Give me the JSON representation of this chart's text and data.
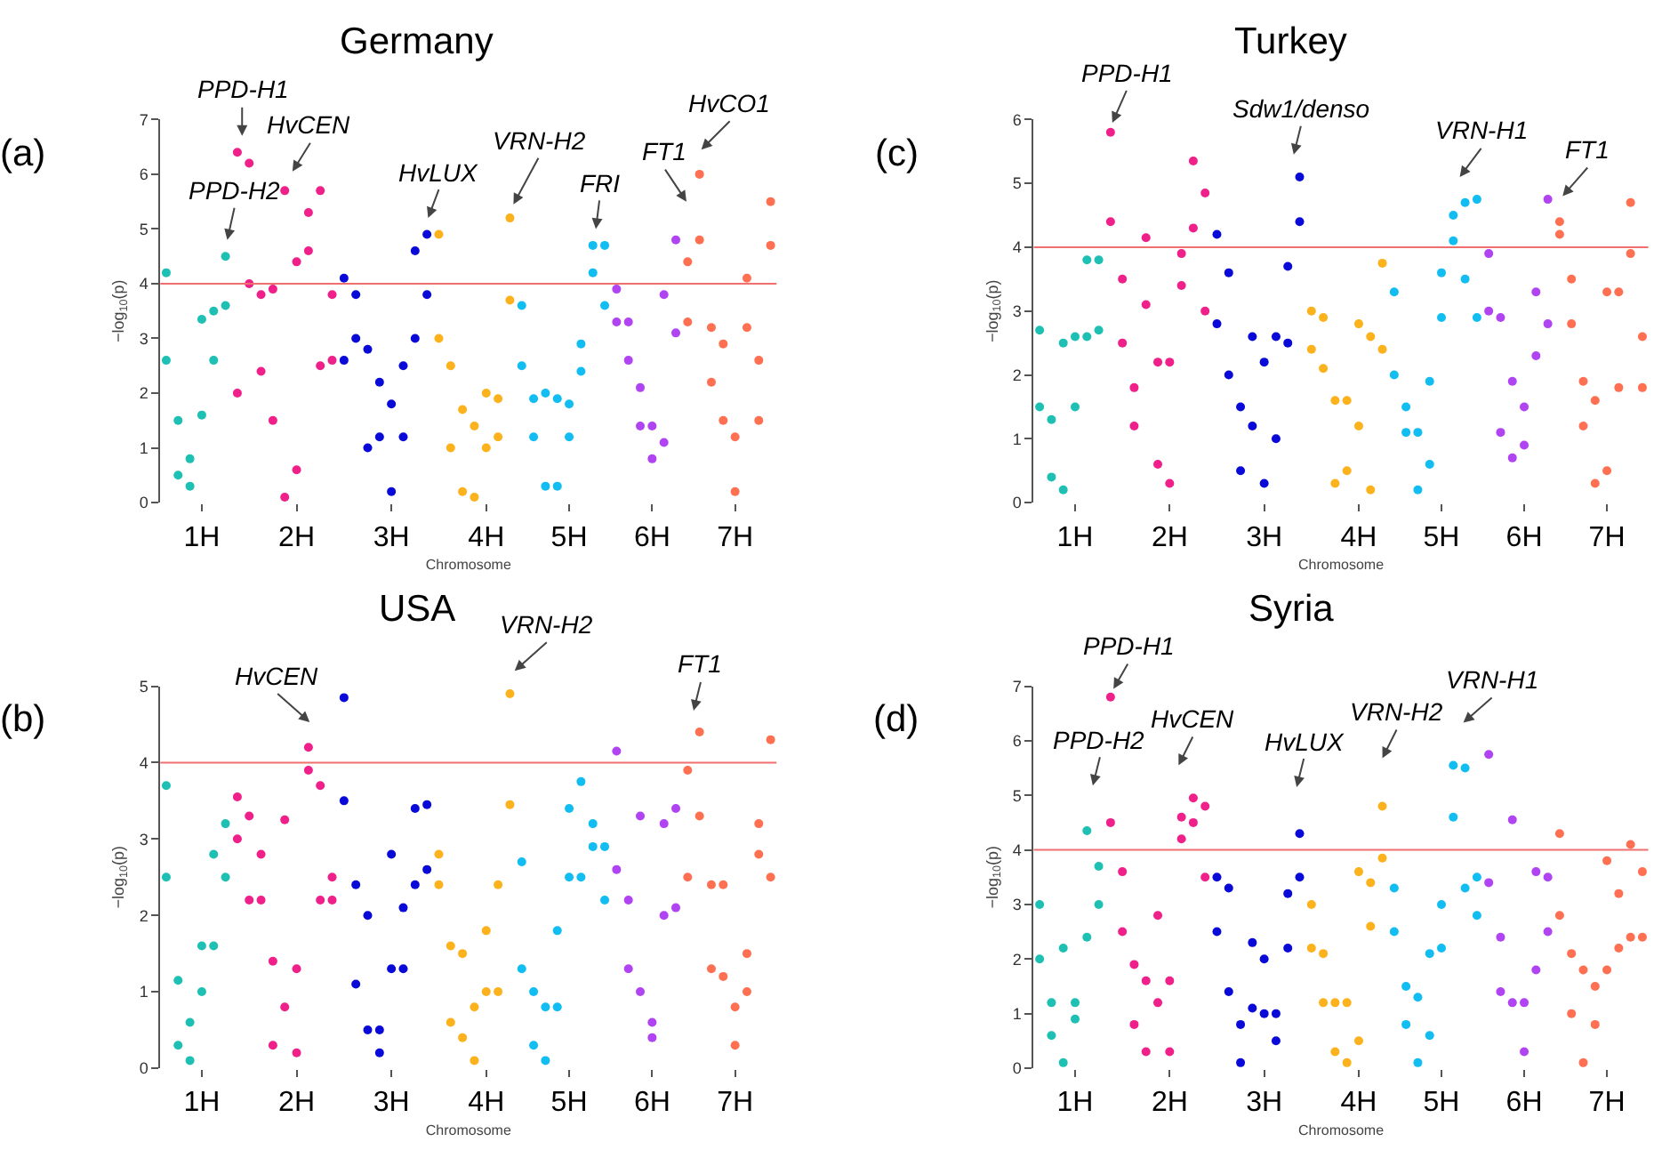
{
  "chart_data": [
    {
      "type": "scatter",
      "title": "Germany",
      "xlabel": "Chromosome",
      "ylabel": "−log$_{10}$(p)",
      "marker": "circle",
      "categories": [
        null,
        null,
        null,
        "1H",
        null,
        null,
        null,
        null,
        null,
        null,
        null,
        "2H",
        null,
        null,
        null,
        null,
        null,
        null,
        null,
        "3H",
        null,
        null,
        null,
        null,
        null,
        null,
        null,
        "4H",
        null,
        null,
        null,
        null,
        null,
        null,
        "5H",
        null,
        null,
        null,
        null,
        null,
        null,
        "6H",
        null,
        null,
        null,
        null,
        null,
        null,
        "7H",
        null,
        null,
        null
      ],
      "ylim": [
        0,
        7
      ],
      "yticks": [
        0,
        1,
        2,
        3,
        4,
        5,
        6,
        7
      ],
      "ref_lines": [
        {
          "axis": "y",
          "value": 4,
          "color": "#f07070"
        }
      ],
      "annotations": [
        "(a)",
        "PPD-H2",
        "PPD-H1",
        "HvCEN",
        "HvLUX",
        "VRN-H2",
        "FRI",
        "FT1",
        "HvCO1"
      ],
      "series": [
        {
          "values": [
            4.2,
            1.5,
            0.8,
            3.35,
            3.5,
            4.5,
            6.4,
            6.2,
            3.8,
            3.9,
            5.7,
            4.4,
            5.3,
            5.7,
            3.8,
            4.1,
            3.8,
            2.8,
            2.2,
            1.8,
            2.5,
            4.6,
            4.9,
            4.9,
            2.5,
            1.7,
            1.4,
            2.0,
            1.9,
            5.2,
            3.6,
            1.9,
            2.0,
            1.9,
            1.8,
            2.9,
            4.7,
            4.7,
            3.9,
            3.3,
            2.1,
            1.4,
            3.8,
            4.8,
            4.4,
            6.0,
            3.2,
            2.9,
            1.2,
            4.1,
            2.6,
            5.5
          ],
          "colors": [
            "#1fc0b4",
            "#1fc0b4",
            "#1fc0b4",
            "#1fc0b4",
            "#1fc0b4",
            "#1fc0b4",
            "#f0208a",
            "#f0208a",
            "#f0208a",
            "#f0208a",
            "#f0208a",
            "#f0208a",
            "#f0208a",
            "#f0208a",
            "#f0208a",
            "#0a0ad8",
            "#0a0ad8",
            "#0a0ad8",
            "#0a0ad8",
            "#0a0ad8",
            "#0a0ad8",
            "#0a0ad8",
            "#0a0ad8",
            "#fbb21c",
            "#fbb21c",
            "#fbb21c",
            "#fbb21c",
            "#fbb21c",
            "#fbb21c",
            "#fbb21c",
            "#12bdf2",
            "#12bdf2",
            "#12bdf2",
            "#12bdf2",
            "#12bdf2",
            "#12bdf2",
            "#12bdf2",
            "#12bdf2",
            "#b043f2",
            "#b043f2",
            "#b043f2",
            "#b043f2",
            "#b043f2",
            "#b043f2",
            "#ff7052",
            "#ff7052",
            "#ff7052",
            "#ff7052",
            "#ff7052",
            "#ff7052",
            "#ff7052",
            "#ff7052"
          ]
        },
        {
          "values": [
            2.6,
            0.5,
            0.3,
            1.6,
            2.6,
            3.6,
            2.0,
            4.0,
            2.4,
            1.5,
            0.1,
            0.6,
            4.6,
            2.5,
            2.6,
            2.6,
            3.0,
            1.0,
            1.2,
            0.2,
            1.2,
            3.0,
            3.8,
            3.0,
            1.0,
            0.2,
            0.1,
            1.0,
            1.2,
            3.7,
            2.5,
            1.2,
            0.3,
            0.3,
            1.2,
            2.4,
            4.2,
            3.6,
            3.3,
            2.6,
            1.4,
            0.8,
            1.1,
            3.1,
            3.3,
            4.8,
            2.2,
            1.5,
            0.2,
            3.2,
            1.5,
            4.7
          ],
          "colors": [
            "#1fc0b4",
            "#1fc0b4",
            "#1fc0b4",
            "#1fc0b4",
            "#1fc0b4",
            "#1fc0b4",
            "#f0208a",
            "#f0208a",
            "#f0208a",
            "#f0208a",
            "#f0208a",
            "#f0208a",
            "#f0208a",
            "#f0208a",
            "#f0208a",
            "#0a0ad8",
            "#0a0ad8",
            "#0a0ad8",
            "#0a0ad8",
            "#0a0ad8",
            "#0a0ad8",
            "#0a0ad8",
            "#0a0ad8",
            "#fbb21c",
            "#fbb21c",
            "#fbb21c",
            "#fbb21c",
            "#fbb21c",
            "#fbb21c",
            "#fbb21c",
            "#12bdf2",
            "#12bdf2",
            "#12bdf2",
            "#12bdf2",
            "#12bdf2",
            "#12bdf2",
            "#12bdf2",
            "#12bdf2",
            "#b043f2",
            "#b043f2",
            "#b043f2",
            "#b043f2",
            "#b043f2",
            "#b043f2",
            "#ff7052",
            "#ff7052",
            "#ff7052",
            "#ff7052",
            "#ff7052",
            "#ff7052",
            "#ff7052",
            "#ff7052"
          ]
        }
      ]
    },
    {
      "type": "scatter",
      "title": "Turkey",
      "xlabel": "Chromosome",
      "ylabel": "−log$_{10}$(p)",
      "marker": "circle",
      "categories": [
        null,
        null,
        null,
        "1H",
        null,
        null,
        null,
        null,
        null,
        null,
        null,
        "2H",
        null,
        null,
        null,
        null,
        null,
        null,
        null,
        "3H",
        null,
        null,
        null,
        null,
        null,
        null,
        null,
        "4H",
        null,
        null,
        null,
        null,
        null,
        null,
        "5H",
        null,
        null,
        null,
        null,
        null,
        null,
        "6H",
        null,
        null,
        null,
        null,
        null,
        null,
        "7H",
        null,
        null,
        null
      ],
      "ylim": [
        0,
        6
      ],
      "yticks": [
        0,
        1,
        2,
        3,
        4,
        5,
        6
      ],
      "ref_lines": [
        {
          "axis": "y",
          "value": 4,
          "color": "#f07070"
        }
      ],
      "annotations": [
        "(c)",
        "PPD-H1",
        "Sdw1/denso",
        "VRN-H1",
        "FT1"
      ],
      "series": [
        {
          "values": [
            2.7,
            1.3,
            2.5,
            2.6,
            3.8,
            3.8,
            5.8,
            3.5,
            1.8,
            4.15,
            2.2,
            2.2,
            3.9,
            5.35,
            4.85,
            4.2,
            3.6,
            1.5,
            2.6,
            2.2,
            2.6,
            3.7,
            5.1,
            3.0,
            2.9,
            1.6,
            1.6,
            2.8,
            2.6,
            3.75,
            3.3,
            1.5,
            1.1,
            1.9,
            3.6,
            4.5,
            4.7,
            4.75,
            3.9,
            2.9,
            1.9,
            1.5,
            3.3,
            4.75,
            4.4,
            3.5,
            1.9,
            1.6,
            3.3,
            3.3,
            4.7,
            2.6
          ],
          "colors": [
            "#1fc0b4",
            "#1fc0b4",
            "#1fc0b4",
            "#1fc0b4",
            "#1fc0b4",
            "#1fc0b4",
            "#f0208a",
            "#f0208a",
            "#f0208a",
            "#f0208a",
            "#f0208a",
            "#f0208a",
            "#f0208a",
            "#f0208a",
            "#f0208a",
            "#0a0ad8",
            "#0a0ad8",
            "#0a0ad8",
            "#0a0ad8",
            "#0a0ad8",
            "#0a0ad8",
            "#0a0ad8",
            "#0a0ad8",
            "#fbb21c",
            "#fbb21c",
            "#fbb21c",
            "#fbb21c",
            "#fbb21c",
            "#fbb21c",
            "#fbb21c",
            "#12bdf2",
            "#12bdf2",
            "#12bdf2",
            "#12bdf2",
            "#12bdf2",
            "#12bdf2",
            "#12bdf2",
            "#12bdf2",
            "#b043f2",
            "#b043f2",
            "#b043f2",
            "#b043f2",
            "#b043f2",
            "#b043f2",
            "#ff7052",
            "#ff7052",
            "#ff7052",
            "#ff7052",
            "#ff7052",
            "#ff7052",
            "#ff7052",
            "#ff7052"
          ]
        },
        {
          "values": [
            1.5,
            0.4,
            0.2,
            1.5,
            2.6,
            2.7,
            4.4,
            2.5,
            1.2,
            3.1,
            0.6,
            0.3,
            3.4,
            4.3,
            3.0,
            2.8,
            2.0,
            0.5,
            1.2,
            0.3,
            1.0,
            2.5,
            4.4,
            2.4,
            2.1,
            0.3,
            0.5,
            1.2,
            0.2,
            2.4,
            2.0,
            1.1,
            0.2,
            0.6,
            2.9,
            4.1,
            3.5,
            2.9,
            3.0,
            1.1,
            0.7,
            0.9,
            2.3,
            2.8,
            4.2,
            2.8,
            1.2,
            0.3,
            0.5,
            1.8,
            3.9,
            1.8
          ],
          "colors": [
            "#1fc0b4",
            "#1fc0b4",
            "#1fc0b4",
            "#1fc0b4",
            "#1fc0b4",
            "#1fc0b4",
            "#f0208a",
            "#f0208a",
            "#f0208a",
            "#f0208a",
            "#f0208a",
            "#f0208a",
            "#f0208a",
            "#f0208a",
            "#f0208a",
            "#0a0ad8",
            "#0a0ad8",
            "#0a0ad8",
            "#0a0ad8",
            "#0a0ad8",
            "#0a0ad8",
            "#0a0ad8",
            "#0a0ad8",
            "#fbb21c",
            "#fbb21c",
            "#fbb21c",
            "#fbb21c",
            "#fbb21c",
            "#fbb21c",
            "#fbb21c",
            "#12bdf2",
            "#12bdf2",
            "#12bdf2",
            "#12bdf2",
            "#12bdf2",
            "#12bdf2",
            "#12bdf2",
            "#12bdf2",
            "#b043f2",
            "#b043f2",
            "#b043f2",
            "#b043f2",
            "#b043f2",
            "#b043f2",
            "#ff7052",
            "#ff7052",
            "#ff7052",
            "#ff7052",
            "#ff7052",
            "#ff7052",
            "#ff7052",
            "#ff7052"
          ]
        }
      ]
    },
    {
      "type": "scatter",
      "title": "USA",
      "xlabel": "Chromosome",
      "ylabel": "−log$_{10}$(p)",
      "marker": "circle",
      "categories": [
        null,
        null,
        null,
        "1H",
        null,
        null,
        null,
        null,
        null,
        null,
        null,
        "2H",
        null,
        null,
        null,
        null,
        null,
        null,
        null,
        "3H",
        null,
        null,
        null,
        null,
        null,
        null,
        null,
        "4H",
        null,
        null,
        null,
        null,
        null,
        null,
        "5H",
        null,
        null,
        null,
        null,
        null,
        null,
        "6H",
        null,
        null,
        null,
        null,
        null,
        null,
        "7H",
        null,
        null,
        null
      ],
      "ylim": [
        0,
        5
      ],
      "yticks": [
        0,
        1,
        2,
        3,
        4,
        5
      ],
      "ref_lines": [
        {
          "axis": "y",
          "value": 4,
          "color": "#f07070"
        }
      ],
      "annotations": [
        "(b)",
        "HvCEN",
        "VRN-H2",
        "FT1"
      ],
      "series": [
        {
          "values": [
            3.7,
            1.15,
            0.6,
            1.6,
            2.8,
            3.2,
            3.55,
            3.3,
            2.8,
            1.4,
            3.25,
            1.3,
            4.2,
            3.7,
            2.5,
            4.85,
            2.4,
            2.0,
            0.5,
            2.8,
            2.1,
            3.4,
            3.45,
            2.8,
            1.6,
            1.5,
            0.8,
            1.8,
            2.4,
            4.9,
            2.7,
            1.0,
            0.8,
            1.8,
            3.4,
            3.75,
            3.2,
            2.9,
            4.15,
            2.2,
            3.3,
            0.6,
            3.2,
            3.4,
            3.9,
            4.4,
            2.4,
            2.4,
            0.8,
            1.5,
            3.2,
            4.3
          ],
          "colors": [
            "#1fc0b4",
            "#1fc0b4",
            "#1fc0b4",
            "#1fc0b4",
            "#1fc0b4",
            "#1fc0b4",
            "#f0208a",
            "#f0208a",
            "#f0208a",
            "#f0208a",
            "#f0208a",
            "#f0208a",
            "#f0208a",
            "#f0208a",
            "#f0208a",
            "#0a0ad8",
            "#0a0ad8",
            "#0a0ad8",
            "#0a0ad8",
            "#0a0ad8",
            "#0a0ad8",
            "#0a0ad8",
            "#0a0ad8",
            "#fbb21c",
            "#fbb21c",
            "#fbb21c",
            "#fbb21c",
            "#fbb21c",
            "#fbb21c",
            "#fbb21c",
            "#12bdf2",
            "#12bdf2",
            "#12bdf2",
            "#12bdf2",
            "#12bdf2",
            "#12bdf2",
            "#12bdf2",
            "#12bdf2",
            "#b043f2",
            "#b043f2",
            "#b043f2",
            "#b043f2",
            "#b043f2",
            "#b043f2",
            "#ff7052",
            "#ff7052",
            "#ff7052",
            "#ff7052",
            "#ff7052",
            "#ff7052",
            "#ff7052",
            "#ff7052"
          ]
        },
        {
          "values": [
            2.5,
            0.3,
            0.1,
            1.0,
            1.6,
            2.5,
            3.0,
            2.2,
            2.2,
            0.3,
            0.8,
            0.2,
            3.9,
            2.2,
            2.2,
            3.5,
            1.1,
            0.5,
            0.2,
            1.3,
            1.3,
            2.4,
            2.6,
            2.4,
            0.6,
            0.4,
            0.1,
            1.0,
            1.0,
            3.45,
            1.3,
            0.3,
            0.1,
            0.8,
            2.5,
            2.5,
            2.9,
            2.2,
            2.6,
            1.3,
            1.0,
            0.4,
            2.0,
            2.1,
            2.5,
            3.3,
            1.3,
            1.2,
            0.3,
            1.0,
            2.8,
            2.5
          ],
          "colors": [
            "#1fc0b4",
            "#1fc0b4",
            "#1fc0b4",
            "#1fc0b4",
            "#1fc0b4",
            "#1fc0b4",
            "#f0208a",
            "#f0208a",
            "#f0208a",
            "#f0208a",
            "#f0208a",
            "#f0208a",
            "#f0208a",
            "#f0208a",
            "#f0208a",
            "#0a0ad8",
            "#0a0ad8",
            "#0a0ad8",
            "#0a0ad8",
            "#0a0ad8",
            "#0a0ad8",
            "#0a0ad8",
            "#0a0ad8",
            "#fbb21c",
            "#fbb21c",
            "#fbb21c",
            "#fbb21c",
            "#fbb21c",
            "#fbb21c",
            "#fbb21c",
            "#12bdf2",
            "#12bdf2",
            "#12bdf2",
            "#12bdf2",
            "#12bdf2",
            "#12bdf2",
            "#12bdf2",
            "#12bdf2",
            "#b043f2",
            "#b043f2",
            "#b043f2",
            "#b043f2",
            "#b043f2",
            "#b043f2",
            "#ff7052",
            "#ff7052",
            "#ff7052",
            "#ff7052",
            "#ff7052",
            "#ff7052",
            "#ff7052",
            "#ff7052"
          ]
        }
      ]
    },
    {
      "type": "scatter",
      "title": "Syria",
      "xlabel": "Chromosome",
      "ylabel": "−log$_{10}$(p)",
      "marker": "circle",
      "categories": [
        null,
        null,
        null,
        "1H",
        null,
        null,
        null,
        null,
        null,
        null,
        null,
        "2H",
        null,
        null,
        null,
        null,
        null,
        null,
        null,
        "3H",
        null,
        null,
        null,
        null,
        null,
        null,
        null,
        "4H",
        null,
        null,
        null,
        null,
        null,
        null,
        "5H",
        null,
        null,
        null,
        null,
        null,
        null,
        "6H",
        null,
        null,
        null,
        null,
        null,
        null,
        "7H",
        null,
        null,
        null
      ],
      "ylim": [
        0,
        7
      ],
      "yticks": [
        0,
        1,
        2,
        3,
        4,
        5,
        6,
        7
      ],
      "ref_lines": [
        {
          "axis": "y",
          "value": 4,
          "color": "#f07070"
        }
      ],
      "annotations": [
        "(d)",
        "PPD-H2",
        "PPD-H1",
        "HvCEN",
        "HvLUX",
        "VRN-H2",
        "VRN-H1"
      ],
      "series": [
        {
          "values": [
            3.0,
            1.2,
            2.2,
            1.2,
            4.35,
            3.7,
            6.8,
            3.6,
            1.9,
            1.6,
            2.8,
            1.6,
            4.6,
            4.95,
            4.8,
            3.5,
            3.3,
            0.8,
            2.3,
            2.0,
            1.0,
            3.2,
            4.3,
            3.0,
            2.1,
            1.2,
            1.2,
            3.6,
            3.4,
            4.8,
            3.3,
            1.5,
            1.3,
            2.1,
            3.0,
            5.55,
            5.5,
            3.5,
            5.75,
            2.4,
            4.55,
            1.2,
            3.6,
            3.5,
            4.3,
            2.1,
            1.8,
            1.5,
            3.8,
            3.2,
            4.1,
            3.6
          ],
          "colors": [
            "#1fc0b4",
            "#1fc0b4",
            "#1fc0b4",
            "#1fc0b4",
            "#1fc0b4",
            "#1fc0b4",
            "#f0208a",
            "#f0208a",
            "#f0208a",
            "#f0208a",
            "#f0208a",
            "#f0208a",
            "#f0208a",
            "#f0208a",
            "#f0208a",
            "#0a0ad8",
            "#0a0ad8",
            "#0a0ad8",
            "#0a0ad8",
            "#0a0ad8",
            "#0a0ad8",
            "#0a0ad8",
            "#0a0ad8",
            "#fbb21c",
            "#fbb21c",
            "#fbb21c",
            "#fbb21c",
            "#fbb21c",
            "#fbb21c",
            "#fbb21c",
            "#12bdf2",
            "#12bdf2",
            "#12bdf2",
            "#12bdf2",
            "#12bdf2",
            "#12bdf2",
            "#12bdf2",
            "#12bdf2",
            "#b043f2",
            "#b043f2",
            "#b043f2",
            "#b043f2",
            "#b043f2",
            "#b043f2",
            "#ff7052",
            "#ff7052",
            "#ff7052",
            "#ff7052",
            "#ff7052",
            "#ff7052",
            "#ff7052",
            "#ff7052"
          ]
        },
        {
          "values": [
            2.0,
            0.6,
            0.1,
            0.9,
            2.4,
            3.0,
            4.5,
            2.5,
            0.8,
            0.3,
            1.2,
            0.3,
            4.2,
            4.5,
            3.5,
            2.5,
            1.4,
            0.1,
            1.1,
            1.0,
            0.5,
            2.2,
            3.5,
            2.2,
            1.2,
            0.3,
            0.1,
            0.5,
            2.6,
            3.85,
            2.5,
            0.8,
            0.1,
            0.6,
            2.2,
            4.6,
            3.3,
            2.8,
            3.4,
            1.4,
            1.2,
            0.3,
            1.8,
            2.5,
            2.8,
            1.0,
            0.1,
            0.8,
            1.8,
            2.2,
            2.4,
            2.4
          ],
          "colors": [
            "#1fc0b4",
            "#1fc0b4",
            "#1fc0b4",
            "#1fc0b4",
            "#1fc0b4",
            "#1fc0b4",
            "#f0208a",
            "#f0208a",
            "#f0208a",
            "#f0208a",
            "#f0208a",
            "#f0208a",
            "#f0208a",
            "#f0208a",
            "#f0208a",
            "#0a0ad8",
            "#0a0ad8",
            "#0a0ad8",
            "#0a0ad8",
            "#0a0ad8",
            "#0a0ad8",
            "#0a0ad8",
            "#0a0ad8",
            "#fbb21c",
            "#fbb21c",
            "#fbb21c",
            "#fbb21c",
            "#fbb21c",
            "#fbb21c",
            "#fbb21c",
            "#12bdf2",
            "#12bdf2",
            "#12bdf2",
            "#12bdf2",
            "#12bdf2",
            "#12bdf2",
            "#12bdf2",
            "#12bdf2",
            "#b043f2",
            "#b043f2",
            "#b043f2",
            "#b043f2",
            "#b043f2",
            "#b043f2",
            "#ff7052",
            "#ff7052",
            "#ff7052",
            "#ff7052",
            "#ff7052",
            "#ff7052",
            "#ff7052",
            "#ff7052"
          ]
        }
      ]
    }
  ]
}
